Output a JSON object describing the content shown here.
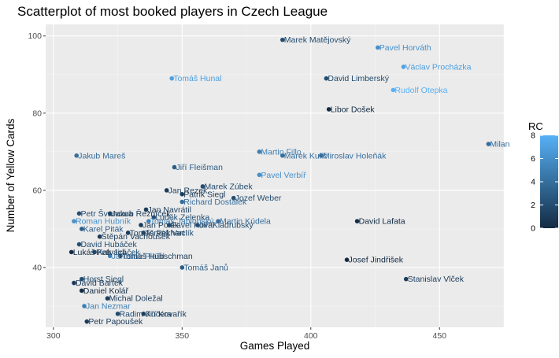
{
  "chart_data": {
    "type": "scatter",
    "title": "Scatterplot of most booked players in Czech League",
    "xlabel": "Games Played",
    "ylabel": "Number of Yellow Cards",
    "xlim": [
      297,
      475
    ],
    "ylim": [
      24.5,
      103
    ],
    "xticks": [
      300,
      350,
      400,
      450
    ],
    "yticks": [
      40,
      60,
      80,
      100
    ],
    "grid": true,
    "color_scale": {
      "name": "RC",
      "min": 0,
      "max": 8,
      "ticks": [
        0,
        2,
        4,
        6,
        8
      ],
      "low_color": "#132B43",
      "high_color": "#56B1F7"
    },
    "points": [
      {
        "label": "Marek Matějovský",
        "x": 389,
        "y": 99,
        "rc": 2
      },
      {
        "label": "Pavel Horváth",
        "x": 426,
        "y": 97,
        "rc": 6
      },
      {
        "label": "Václav Procházka",
        "x": 436,
        "y": 92,
        "rc": 7
      },
      {
        "label": "Tomáš Hunal",
        "x": 346,
        "y": 89,
        "rc": 7
      },
      {
        "label": "David Limberský",
        "x": 406,
        "y": 89,
        "rc": 2
      },
      {
        "label": "Rudolf Otepka",
        "x": 432,
        "y": 86,
        "rc": 8
      },
      {
        "label": "Libor Došek",
        "x": 407,
        "y": 81,
        "rc": 0
      },
      {
        "label": "Milan",
        "x": 469,
        "y": 72,
        "rc": 4
      },
      {
        "label": "Martin Fillo",
        "x": 380,
        "y": 70,
        "rc": 5
      },
      {
        "label": "Marek Kulič",
        "x": 389,
        "y": 69,
        "rc": 4
      },
      {
        "label": "Miroslav Holeňák",
        "x": 404,
        "y": 69,
        "rc": 4
      },
      {
        "label": "Jakub Mareš",
        "x": 309,
        "y": 69,
        "rc": 4
      },
      {
        "label": "Jiří Fleišman",
        "x": 347,
        "y": 66,
        "rc": 3
      },
      {
        "label": "Pavel Verbíř",
        "x": 380,
        "y": 64,
        "rc": 6
      },
      {
        "label": "Marek Zúbek",
        "x": 358,
        "y": 61,
        "rc": 2
      },
      {
        "label": "Jan Rezek",
        "x": 344,
        "y": 60,
        "rc": 1
      },
      {
        "label": "Patrik Siegl",
        "x": 350,
        "y": 59,
        "rc": 1
      },
      {
        "label": "Jozef Weber",
        "x": 370,
        "y": 58,
        "rc": 2
      },
      {
        "label": "Richard Dostálek",
        "x": 350,
        "y": 57,
        "rc": 4
      },
      {
        "label": "Jan Navrátil",
        "x": 336,
        "y": 55,
        "rc": 1
      },
      {
        "label": "Petr Švancara",
        "x": 310,
        "y": 54,
        "rc": 2
      },
      {
        "label": "Jakub Řezníček",
        "x": 322,
        "y": 54,
        "rc": 1
      },
      {
        "label": "Luděk Zelenka",
        "x": 339,
        "y": 53,
        "rc": 2
      },
      {
        "label": "Roman Hubník",
        "x": 308,
        "y": 52,
        "rc": 6
      },
      {
        "label": "Martin Kúdela",
        "x": 364,
        "y": 52,
        "rc": 4
      },
      {
        "label": "David Lafata",
        "x": 418,
        "y": 52,
        "rc": 0
      },
      {
        "label": "Tomáš Jablonský",
        "x": 337,
        "y": 52,
        "rc": 5
      },
      {
        "label": "Jan Polák",
        "x": 334,
        "y": 51,
        "rc": 1
      },
      {
        "label": "Pavel Kovář",
        "x": 345,
        "y": 51,
        "rc": 2
      },
      {
        "label": "Jiří Kladrubský",
        "x": 356,
        "y": 51,
        "rc": 2
      },
      {
        "label": "Karel Piták",
        "x": 311,
        "y": 50,
        "rc": 3
      },
      {
        "label": "Tomáš Pekhart",
        "x": 329,
        "y": 49,
        "rc": 1
      },
      {
        "label": "Tomáš Vaclík",
        "x": 335,
        "y": 49,
        "rc": 2
      },
      {
        "label": "Štěpán Vachoušek",
        "x": 318,
        "y": 48,
        "rc": 1
      },
      {
        "label": "David Hubáček",
        "x": 310,
        "y": 46,
        "rc": 2
      },
      {
        "label": "Lukáš Kalvach",
        "x": 307,
        "y": 44,
        "rc": 0
      },
      {
        "label": "Petr Jiráček",
        "x": 316,
        "y": 44,
        "rc": 2
      },
      {
        "label": "Jaroslav Plašil",
        "x": 322,
        "y": 43,
        "rc": 5
      },
      {
        "label": "Tomáš Hübschman",
        "x": 326,
        "y": 43,
        "rc": 1
      },
      {
        "label": "Josef Jindřišek",
        "x": 414,
        "y": 42,
        "rc": 0
      },
      {
        "label": "Tomáš Janů",
        "x": 350,
        "y": 40,
        "rc": 3
      },
      {
        "label": "Stanislav Vlček",
        "x": 437,
        "y": 37,
        "rc": 1
      },
      {
        "label": "Horst Siegl",
        "x": 311,
        "y": 37,
        "rc": 2
      },
      {
        "label": "David Bartek",
        "x": 308,
        "y": 36,
        "rc": 1
      },
      {
        "label": "Daniel Kolář",
        "x": 311,
        "y": 34,
        "rc": 0
      },
      {
        "label": "Michal Doležal",
        "x": 321,
        "y": 32,
        "rc": 1
      },
      {
        "label": "Jan Nezmar",
        "x": 312,
        "y": 30,
        "rc": 5
      },
      {
        "label": "Radim Kučera",
        "x": 325,
        "y": 28,
        "rc": 2
      },
      {
        "label": "Jiří Kovařík",
        "x": 335,
        "y": 28,
        "rc": 1
      },
      {
        "label": "Petr Papoušek",
        "x": 313,
        "y": 26,
        "rc": 1
      }
    ]
  }
}
